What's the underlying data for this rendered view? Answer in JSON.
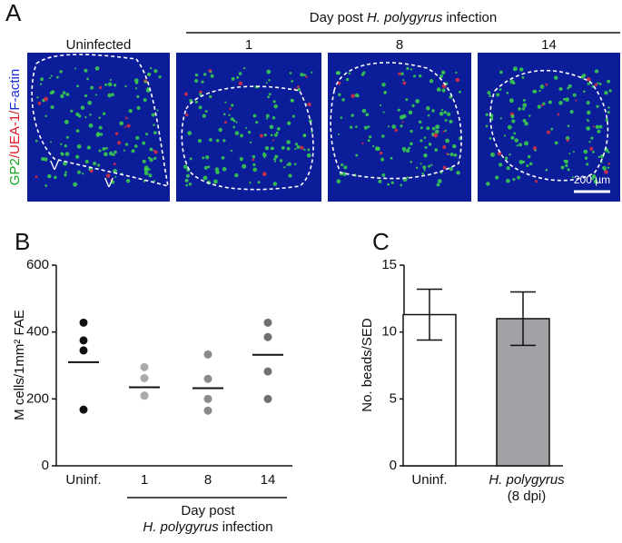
{
  "panel_a": {
    "label": "A",
    "title_parts": [
      "Day post",
      "H. polygyrus",
      "infection"
    ],
    "columns": [
      "Uninfected",
      "1",
      "8",
      "14"
    ],
    "stain_parts": [
      "GP2",
      "/UEA-1/",
      "F-actin"
    ],
    "villus_marks": [
      "V",
      "V"
    ],
    "scale_bar": "200 µm"
  },
  "chart_data": [
    {
      "type": "dot",
      "label": "B",
      "y_label": "M cells/1mm² FAE",
      "categories": [
        "Uninf.",
        "1",
        "8",
        "14"
      ],
      "values": [
        [
          428,
          375,
          345,
          168
        ],
        [
          295,
          262,
          210,
          210
        ],
        [
          333,
          260,
          200,
          165
        ],
        [
          428,
          385,
          282,
          200
        ]
      ],
      "means": [
        310,
        235,
        232,
        332
      ],
      "colors": [
        "#111111",
        "#aaaaaa",
        "#8a8a8a",
        "#707070"
      ],
      "x_label": {
        "line1": "Day post",
        "line2_italic": "H. polygyrus",
        "line2": "infection"
      },
      "ylim": [
        0,
        600
      ],
      "yticks": [
        0,
        200,
        400,
        600
      ]
    },
    {
      "type": "bar",
      "label": "C",
      "y_label": "No. beads/SED",
      "categories": [
        [
          "Uninf."
        ],
        [
          "H. polygyrus",
          "(8 dpi)"
        ]
      ],
      "values": [
        11.3,
        11.0
      ],
      "errors": [
        1.9,
        2.0
      ],
      "colors": [
        "#ffffff",
        "#a2a2a6"
      ],
      "ylim": [
        0,
        15
      ],
      "yticks": [
        0,
        5,
        10,
        15
      ]
    }
  ]
}
